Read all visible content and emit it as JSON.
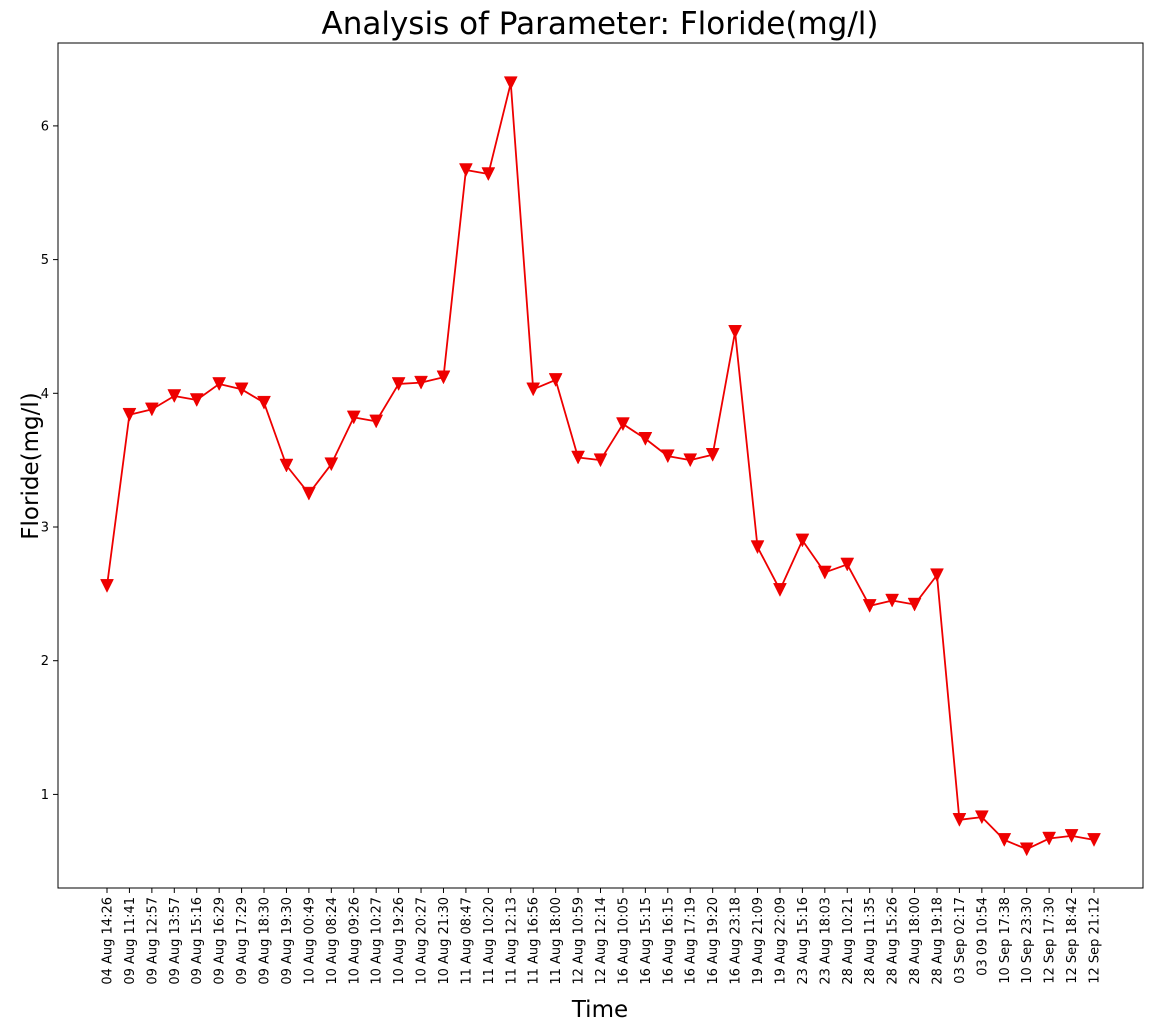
{
  "chart_data": {
    "type": "line",
    "title": "Analysis of Parameter: Floride(mg/l)",
    "xlabel": "Time",
    "ylabel": "Floride(mg/l)",
    "ylim": [
      0.3,
      6.62
    ],
    "yticks": [
      1,
      2,
      3,
      4,
      5,
      6
    ],
    "grid": false,
    "marker": "triangle-down",
    "colors": {
      "series": "#ee0000"
    },
    "categories": [
      "04 Aug 14:26",
      "09 Aug 11:41",
      "09 Aug 12:57",
      "09 Aug 13:57",
      "09 Aug 15:16",
      "09 Aug 16:29",
      "09 Aug 17:29",
      "09 Aug 18:30",
      "09 Aug 19:30",
      "10 Aug 00:49",
      "10 Aug 08:24",
      "10 Aug 09:26",
      "10 Aug 10:27",
      "10 Aug 19:26",
      "10 Aug 20:27",
      "10 Aug 21:30",
      "11 Aug 08:47",
      "11 Aug 10:20",
      "11 Aug 12:13",
      "11 Aug 16:56",
      "11 Aug 18:00",
      "12 Aug 10:59",
      "12 Aug 12:14",
      "16 Aug 10:05",
      "16 Aug 15:15",
      "16 Aug 16:15",
      "16 Aug 17:19",
      "16 Aug 19:20",
      "16 Aug 23:18",
      "19 Aug 21:09",
      "19 Aug 22:09",
      "23 Aug 15:16",
      "23 Aug 18:03",
      "28 Aug 10:21",
      "28 Aug 11:35",
      "28 Aug 15:26",
      "28 Aug 18:00",
      "28 Aug 19:18",
      "03 Sep 02:17",
      "03 09 10:54",
      "10 Sep 17:38",
      "10 Sep 23:30",
      "12 Sep 17:30",
      "12 Sep 18:42",
      "12 Sep 21:12"
    ],
    "series": [
      {
        "values": [
          2.56,
          3.84,
          3.88,
          3.98,
          3.95,
          4.07,
          4.03,
          3.93,
          3.46,
          3.25,
          3.47,
          3.82,
          3.79,
          4.07,
          4.08,
          4.12,
          5.67,
          5.64,
          6.32,
          4.03,
          4.1,
          3.52,
          3.5,
          3.77,
          3.66,
          3.53,
          3.5,
          3.54,
          4.46,
          2.85,
          2.53,
          2.9,
          2.66,
          2.72,
          2.41,
          2.45,
          2.42,
          2.64,
          0.81,
          0.83,
          0.66,
          0.59,
          0.67,
          0.69,
          0.66
        ]
      }
    ]
  }
}
